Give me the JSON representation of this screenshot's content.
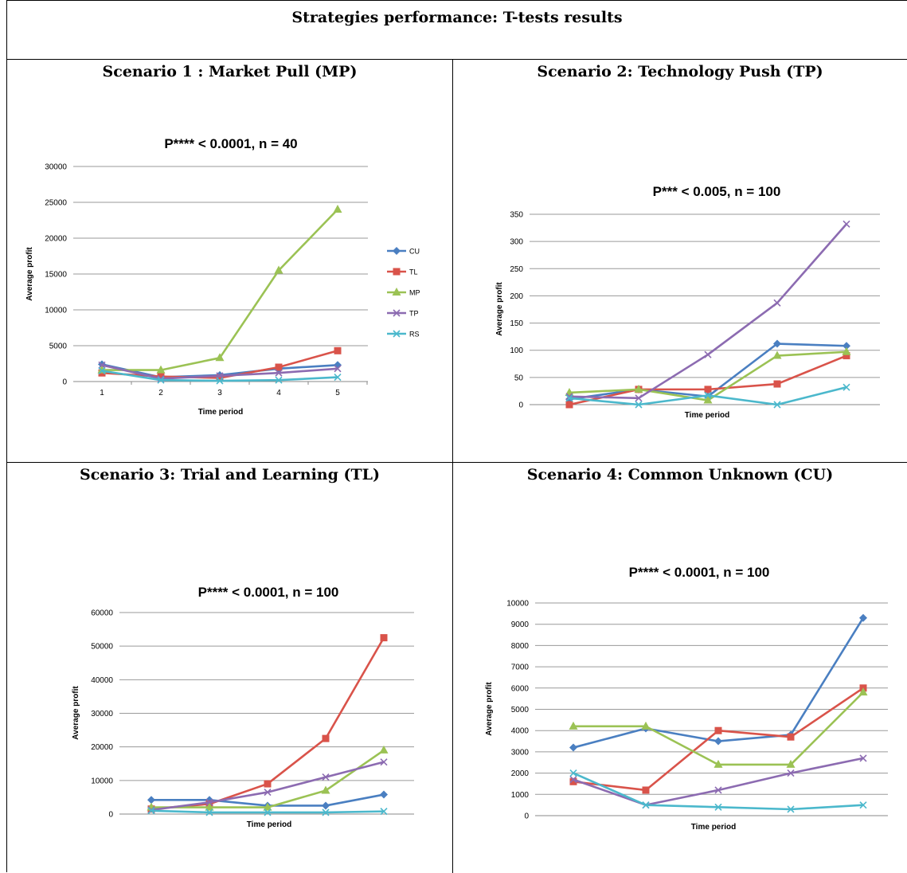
{
  "page_title": "Strategies performance: T-tests results",
  "chart_data": [
    {
      "id": "mp",
      "scenario": "Scenario 1 : Market Pull (MP)",
      "type": "line",
      "title": "P**** < 0.0001, n = 40",
      "xlabel": "Time period",
      "ylabel": "Average profit",
      "categories": [
        "1",
        "2",
        "3",
        "4",
        "5"
      ],
      "ylim": [
        0,
        30000
      ],
      "yticks": [
        0,
        5000,
        10000,
        15000,
        20000,
        25000,
        30000
      ],
      "show_xticks": true,
      "legend": "right",
      "grid": true,
      "series": [
        {
          "name": "CU",
          "color": "#4a7fc1",
          "marker": "diamond",
          "values": [
            2400,
            600,
            900,
            1800,
            2300
          ]
        },
        {
          "name": "TL",
          "color": "#d9534a",
          "marker": "square",
          "values": [
            1200,
            700,
            500,
            2000,
            4300
          ]
        },
        {
          "name": "MP",
          "color": "#9bc254",
          "marker": "triangle",
          "values": [
            1600,
            1600,
            3300,
            15500,
            24000
          ]
        },
        {
          "name": "TP",
          "color": "#8c6bb1",
          "marker": "x",
          "values": [
            2300,
            400,
            800,
            1200,
            1800
          ]
        },
        {
          "name": "RS",
          "color": "#4bb8cc",
          "marker": "x",
          "values": [
            1500,
            200,
            100,
            200,
            600
          ]
        }
      ]
    },
    {
      "id": "tp",
      "scenario": "Scenario 2: Technology Push (TP)",
      "type": "line",
      "title": "P*** < 0.005, n = 100",
      "xlabel": "Time period",
      "ylabel": "Average profit",
      "categories": [
        "1",
        "2",
        "3",
        "4",
        "5"
      ],
      "ylim": [
        0,
        350
      ],
      "yticks": [
        0,
        50,
        100,
        150,
        200,
        250,
        300,
        350
      ],
      "show_xticks": false,
      "legend": "none",
      "grid": true,
      "series": [
        {
          "name": "CU",
          "color": "#4a7fc1",
          "marker": "diamond",
          "values": [
            10,
            28,
            15,
            112,
            108
          ]
        },
        {
          "name": "TL",
          "color": "#d9534a",
          "marker": "square",
          "values": [
            0,
            28,
            28,
            38,
            90
          ]
        },
        {
          "name": "MP",
          "color": "#9bc254",
          "marker": "triangle",
          "values": [
            22,
            28,
            8,
            90,
            97
          ]
        },
        {
          "name": "TP",
          "color": "#8c6bb1",
          "marker": "x",
          "values": [
            15,
            12,
            92,
            187,
            332
          ]
        },
        {
          "name": "RS",
          "color": "#4bb8cc",
          "marker": "x",
          "values": [
            12,
            0,
            17,
            0,
            32
          ]
        }
      ]
    },
    {
      "id": "tl",
      "scenario": "Scenario 3: Trial and Learning (TL)",
      "type": "line",
      "title": "P**** < 0.0001, n = 100",
      "xlabel": "Time period",
      "ylabel": "Average profit",
      "categories": [
        "1",
        "2",
        "3",
        "4",
        "5"
      ],
      "ylim": [
        0,
        60000
      ],
      "yticks": [
        0,
        10000,
        20000,
        30000,
        40000,
        50000,
        60000
      ],
      "show_xticks": false,
      "legend": "none",
      "grid": true,
      "series": [
        {
          "name": "CU",
          "color": "#4a7fc1",
          "marker": "diamond",
          "values": [
            4200,
            4200,
            2500,
            2500,
            5800
          ]
        },
        {
          "name": "TL",
          "color": "#d9534a",
          "marker": "square",
          "values": [
            1500,
            3000,
            9000,
            22500,
            52500
          ]
        },
        {
          "name": "MP",
          "color": "#9bc254",
          "marker": "triangle",
          "values": [
            2000,
            2000,
            2000,
            7000,
            19000
          ]
        },
        {
          "name": "TP",
          "color": "#8c6bb1",
          "marker": "x",
          "values": [
            1200,
            3500,
            6500,
            11000,
            15500
          ]
        },
        {
          "name": "RS",
          "color": "#4bb8cc",
          "marker": "x",
          "values": [
            1000,
            500,
            500,
            500,
            800
          ]
        }
      ]
    },
    {
      "id": "cu",
      "scenario": "Scenario 4: Common Unknown (CU)",
      "type": "line",
      "title": "P**** < 0.0001, n = 100",
      "xlabel": "Time period",
      "ylabel": "Average profit",
      "categories": [
        "1",
        "2",
        "3",
        "4",
        "5"
      ],
      "ylim": [
        0,
        10000
      ],
      "yticks": [
        0,
        1000,
        2000,
        3000,
        4000,
        5000,
        6000,
        7000,
        8000,
        9000,
        10000
      ],
      "show_xticks": false,
      "legend": "none",
      "grid": true,
      "series": [
        {
          "name": "CU",
          "color": "#4a7fc1",
          "marker": "diamond",
          "values": [
            3200,
            4100,
            3500,
            3800,
            9300
          ]
        },
        {
          "name": "TL",
          "color": "#d9534a",
          "marker": "square",
          "values": [
            1600,
            1200,
            4000,
            3700,
            6000
          ]
        },
        {
          "name": "MP",
          "color": "#9bc254",
          "marker": "triangle",
          "values": [
            4200,
            4200,
            2400,
            2400,
            5800
          ]
        },
        {
          "name": "TP",
          "color": "#8c6bb1",
          "marker": "x",
          "values": [
            1700,
            500,
            1200,
            2000,
            2700
          ]
        },
        {
          "name": "RS",
          "color": "#4bb8cc",
          "marker": "x",
          "values": [
            2000,
            500,
            400,
            300,
            500
          ]
        }
      ]
    }
  ]
}
